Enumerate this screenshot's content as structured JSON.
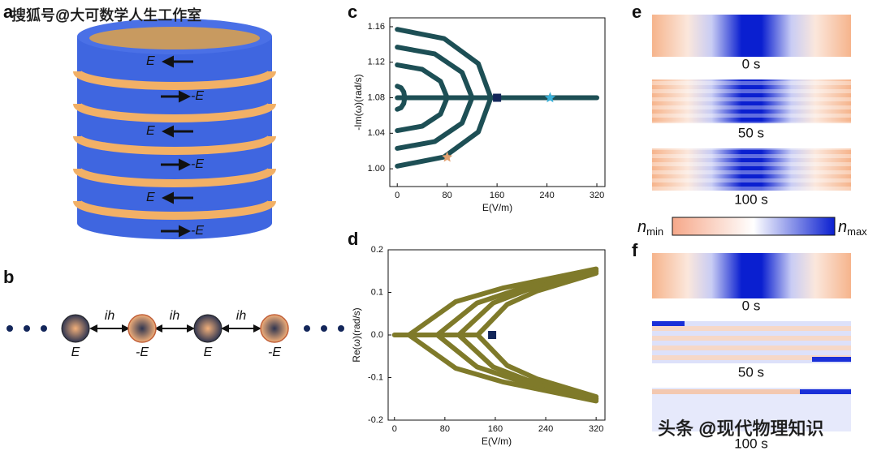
{
  "watermarks": [
    "搜狐号@大可数学人生工作室",
    "头条 @现代物理知识"
  ],
  "panel_labels": [
    "a",
    "b",
    "c",
    "d",
    "e",
    "f"
  ],
  "cylinder": {
    "labels": [
      "E",
      "-E",
      "E",
      "-E",
      "E",
      "-E"
    ]
  },
  "chain": {
    "couplings": [
      "ih",
      "ih",
      "ih"
    ],
    "sites": [
      "E",
      "-E",
      "E",
      "-E"
    ]
  },
  "panel_e": {
    "times": [
      "0 s",
      "50 s",
      "100 s"
    ]
  },
  "panel_f": {
    "times": [
      "0 s",
      "50 s",
      "100 s"
    ]
  },
  "colorbar": {
    "min": {
      "symbol": "n",
      "sub": "min"
    },
    "max": {
      "symbol": "n",
      "sub": "max"
    }
  },
  "chart_data": [
    {
      "type": "line",
      "xlabel": "E(V/m)",
      "ylabel": "-Im(ω)(rad/s)",
      "xlim": [
        -12,
        333
      ],
      "ylim": [
        0.98,
        1.17
      ],
      "xticks": [
        0,
        80,
        160,
        240,
        320
      ],
      "yticks": [
        {
          "value": 1.0,
          "label": "1.00"
        },
        1.04,
        {
          "value": 1.08,
          "label": "1.08"
        },
        1.12,
        1.16
      ],
      "series": [
        {
          "color": "#1d4f55",
          "x": [
            0,
            6,
            10.4,
            12,
            10.4,
            6,
            0
          ],
          "values": [
            1.093,
            1.0913,
            1.0865,
            1.08,
            1.0735,
            1.0687,
            1.067
          ]
        },
        {
          "color": "#1d4f55",
          "x": [
            0,
            40,
            69.3,
            80,
            69.3,
            40,
            0
          ],
          "values": [
            1.117,
            1.112,
            1.0985,
            1.08,
            1.0615,
            1.048,
            1.043
          ]
        },
        {
          "color": "#1d4f55",
          "x": [
            0,
            60,
            103.9,
            120,
            103.9,
            60,
            0
          ],
          "values": [
            1.137,
            1.1294,
            1.1085,
            1.08,
            1.0515,
            1.0306,
            1.023
          ]
        },
        {
          "color": "#1d4f55",
          "x": [
            0,
            75,
            129.9,
            150,
            129.9,
            75,
            0
          ],
          "values": [
            1.157,
            1.1467,
            1.1185,
            1.08,
            1.0415,
            1.0133,
            1.003
          ]
        },
        {
          "color": "#1d4f55",
          "x": [
            0,
            320
          ],
          "values": [
            1.08,
            1.08
          ]
        }
      ],
      "markers": [
        {
          "shape": "square",
          "color": "#13265a",
          "x": 160,
          "y": 1.08
        },
        {
          "shape": "star",
          "color": "#3ab0d8",
          "x": 245,
          "y": 1.08
        },
        {
          "shape": "star",
          "color": "#e0a070",
          "x": 80,
          "y": 1.013
        }
      ]
    },
    {
      "type": "line",
      "xlabel": "E(V/m)",
      "ylabel": "Re(ω)(rad/s)",
      "xlim": [
        -10,
        334
      ],
      "ylim": [
        -0.2,
        0.2
      ],
      "xticks": [
        0,
        80,
        160,
        240,
        320
      ],
      "yticks": [
        -0.2,
        -0.1,
        {
          "value": 0,
          "label": "0.0"
        },
        0.1,
        0.2
      ],
      "series": [
        {
          "color": "#7f7a2a",
          "x": [
            320,
            171.5,
            97,
            23,
            97,
            171.5,
            320
          ],
          "values": [
            0.155,
            0.11,
            0.078,
            0,
            -0.078,
            -0.11,
            -0.155
          ]
        },
        {
          "color": "#7f7a2a",
          "x": [
            320,
            194,
            131,
            68,
            131,
            194,
            320
          ],
          "values": [
            0.15,
            0.106,
            0.075,
            0,
            -0.075,
            -0.106,
            -0.15
          ]
        },
        {
          "color": "#7f7a2a",
          "x": [
            320,
            211,
            156.5,
            102,
            156.5,
            211,
            320
          ],
          "values": [
            0.15,
            0.106,
            0.075,
            0,
            -0.075,
            -0.106,
            -0.15
          ]
        },
        {
          "color": "#7f7a2a",
          "x": [
            320,
            226,
            179,
            132,
            179,
            226,
            320
          ],
          "values": [
            0.145,
            0.103,
            0.072,
            0,
            -0.072,
            -0.103,
            -0.145
          ]
        },
        {
          "color": "#7f7a2a",
          "x": [
            0,
            132
          ],
          "values": [
            0,
            0
          ]
        }
      ],
      "markers": [
        {
          "shape": "square",
          "color": "#13265a",
          "x": 155,
          "y": 0
        }
      ]
    }
  ]
}
